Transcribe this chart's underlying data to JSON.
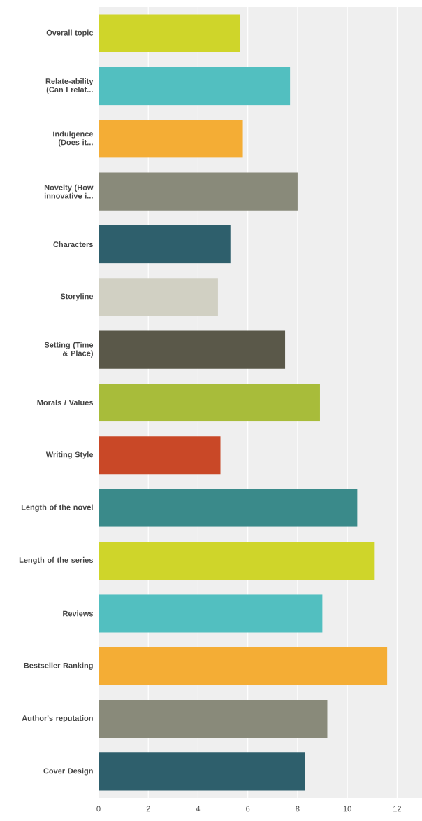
{
  "chart_data": {
    "type": "bar",
    "orientation": "horizontal",
    "categories": [
      "Overall topic",
      "Relate-ability (Can I relat...",
      "Indulgence (Does it...",
      "Novelty (How innovative i...",
      "Characters",
      "Storyline",
      "Setting (Time & Place)",
      "Morals / Values",
      "Writing Style",
      "Length of the novel",
      "Length of the series",
      "Reviews",
      "Bestseller Ranking",
      "Author's reputation",
      "Cover Design"
    ],
    "values": [
      5.7,
      7.7,
      5.8,
      8.0,
      5.3,
      4.8,
      7.5,
      8.9,
      4.9,
      10.4,
      11.1,
      9.0,
      11.6,
      9.2,
      8.3
    ],
    "colors": [
      "#cfd52a",
      "#52bfc0",
      "#f4ad35",
      "#898a7a",
      "#2e5f6c",
      "#d1d0c3",
      "#5a5849",
      "#a8bc3a",
      "#c94827",
      "#3a8a8a",
      "#cfd52a",
      "#52bfc0",
      "#f4ad35",
      "#898a7a",
      "#2e5f6c"
    ],
    "xlim": [
      0,
      13
    ],
    "xticks": [
      0,
      2,
      4,
      6,
      8,
      10,
      12
    ],
    "grid": "x"
  }
}
